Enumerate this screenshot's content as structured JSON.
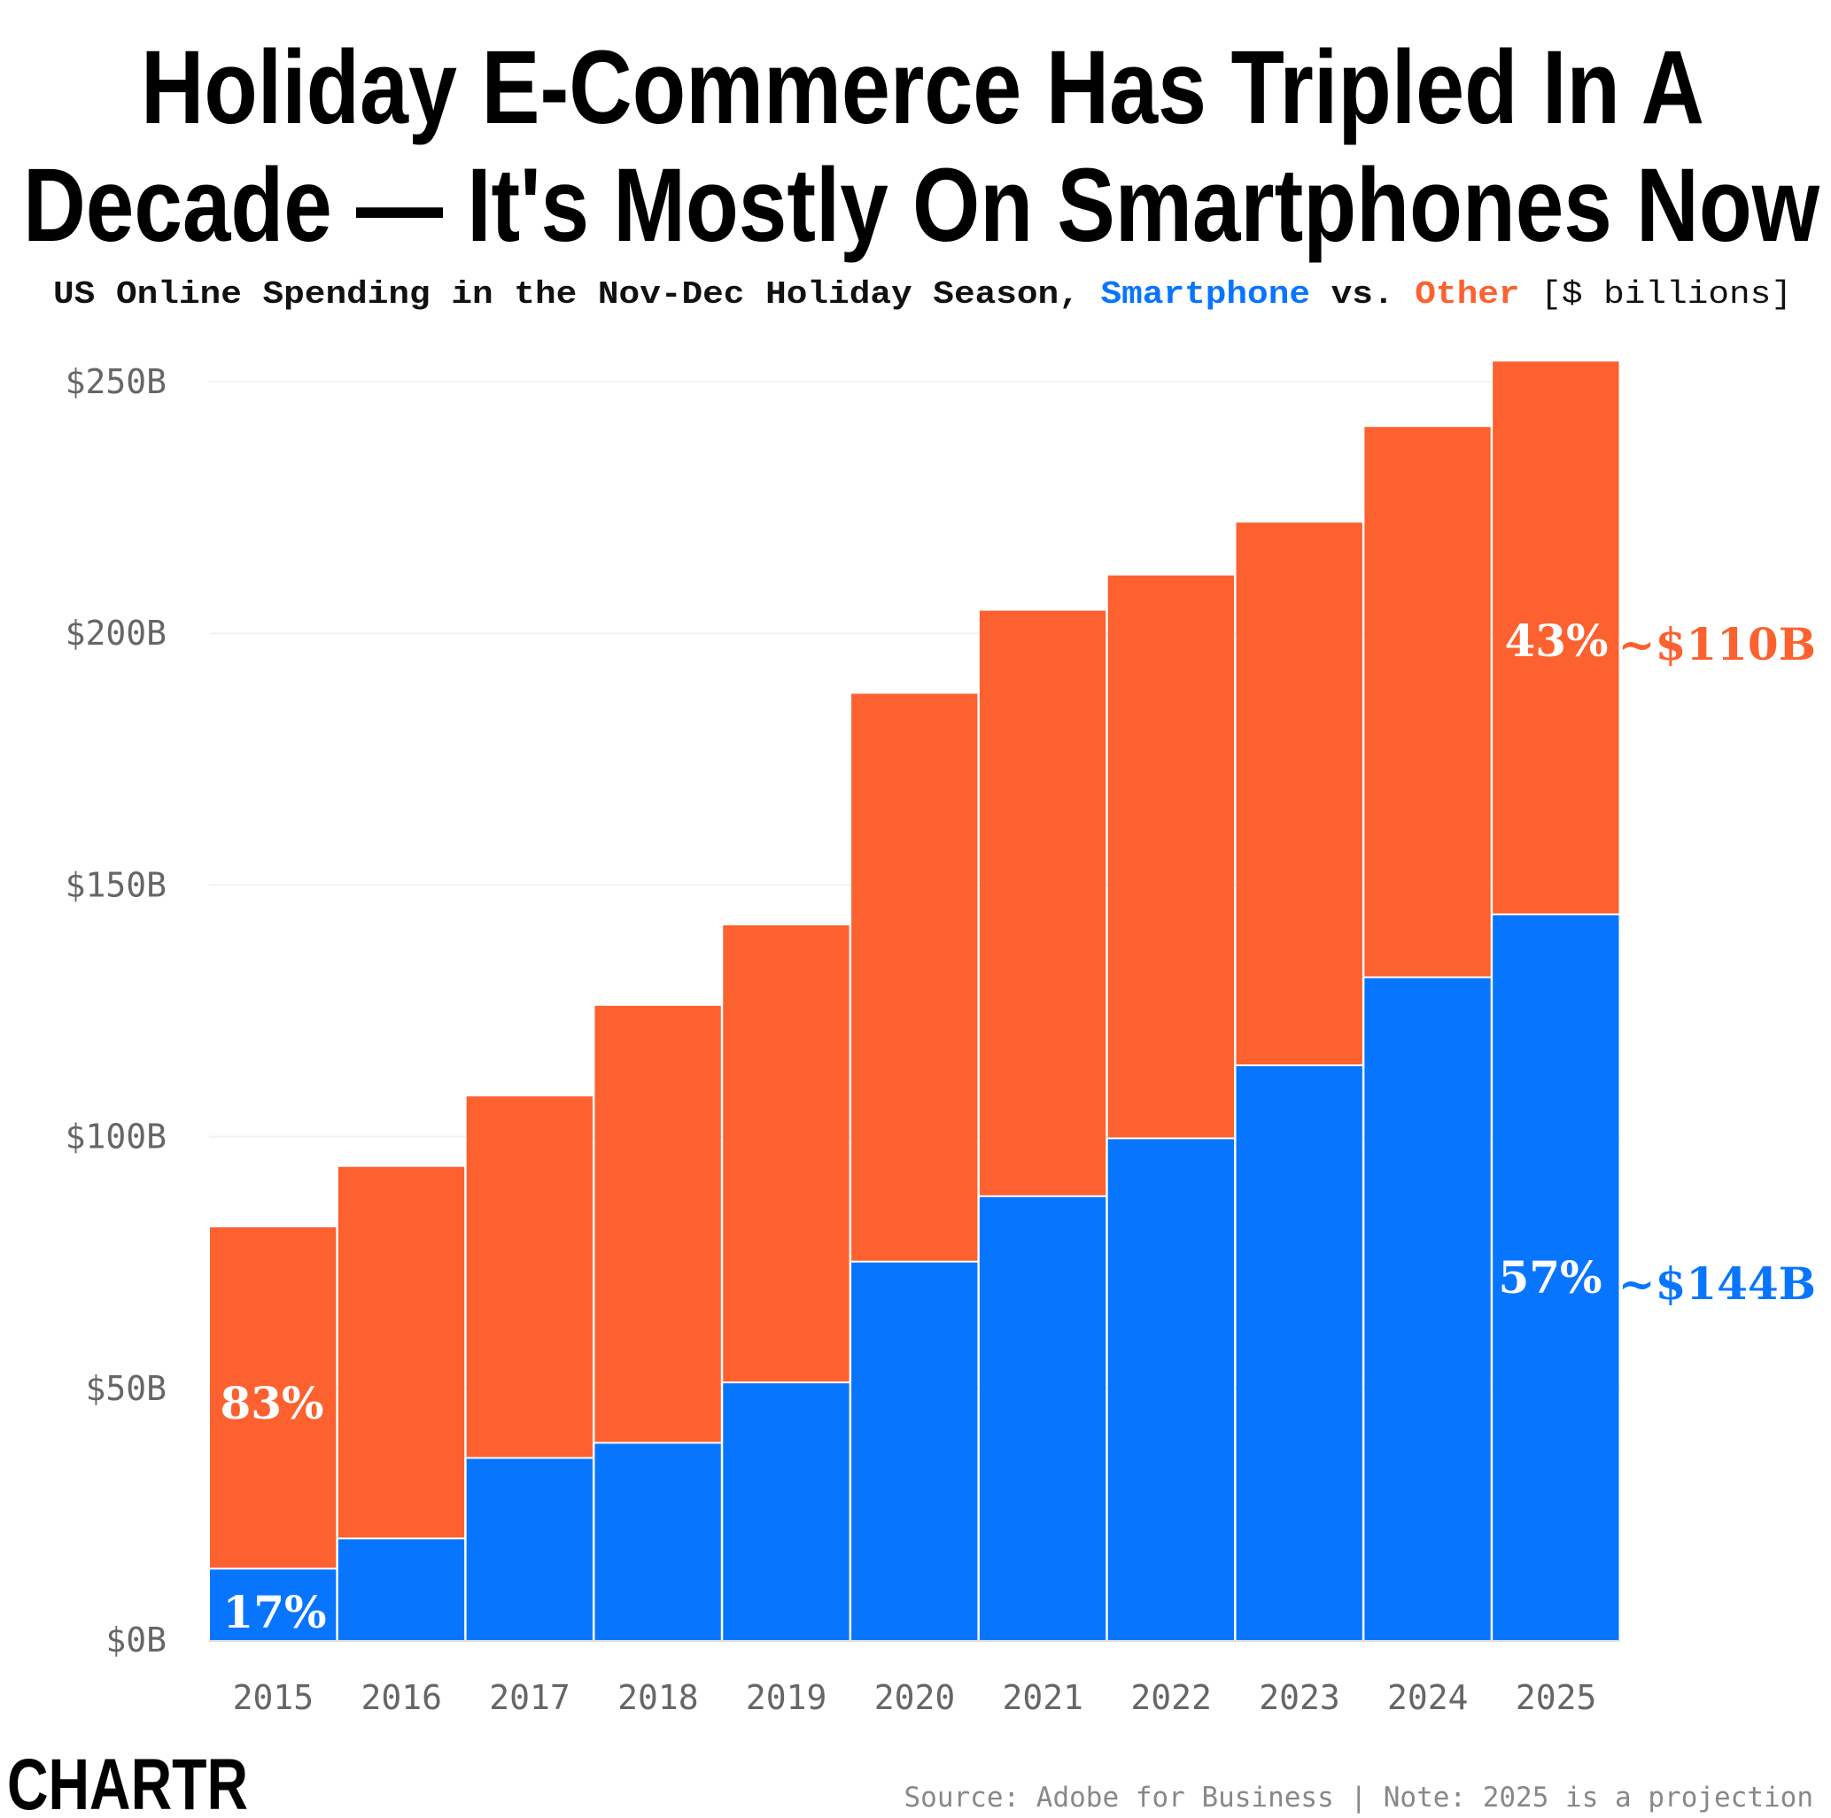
{
  "title_line1": "Holiday E-Commerce Has Tripled In A",
  "title_line2": "Decade — It's Mostly On Smartphones Now",
  "subtitle": {
    "prefix": "US Online Spending in the Nov-Dec Holiday Season, ",
    "series1": "Smartphone",
    "mid": " vs. ",
    "series2": "Other",
    "unit": " [$ billions]"
  },
  "source": "Source: Adobe for Business | Note: 2025 is a projection",
  "logo": "CHARTR",
  "colors": {
    "smartphone": "#0875FF",
    "other": "#FC612F"
  },
  "chart_data": {
    "type": "bar",
    "stacked": true,
    "categories": [
      "2015",
      "2016",
      "2017",
      "2018",
      "2019",
      "2020",
      "2021",
      "2022",
      "2023",
      "2024",
      "2025"
    ],
    "series": [
      {
        "name": "Smartphone",
        "values": [
          14,
          20,
          36,
          39,
          51,
          75,
          88,
          99.5,
          114,
          131.5,
          144
        ]
      },
      {
        "name": "Other",
        "values": [
          68,
          74,
          72,
          87,
          91,
          113,
          116.5,
          112,
          108,
          109.5,
          110
        ]
      }
    ],
    "ylim": [
      0,
      250
    ],
    "yticks": [
      0,
      50,
      100,
      150,
      200,
      250
    ],
    "ytick_labels": [
      "$0B",
      "$50B",
      "$100B",
      "$150B",
      "$200B",
      "$250B"
    ],
    "grid": true,
    "annotations": {
      "other_2015_pct": "83%",
      "smartphone_2015_pct": "17%",
      "other_2025_pct": "43%",
      "smartphone_2025_pct": "57%",
      "other_2025_value": "~$110B",
      "smartphone_2025_value": "~$144B"
    }
  }
}
